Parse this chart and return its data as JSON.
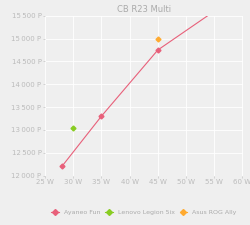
{
  "title": "CB R23 Multi",
  "series_main": {
    "label": "Ayaneo Fun",
    "color": "#e8607a",
    "x": [
      28,
      35,
      45,
      55
    ],
    "y": [
      12200,
      13300,
      14750,
      15600
    ],
    "marker": "D",
    "markersize": 2.5,
    "linestyle": "-"
  },
  "series_legion": {
    "label": "Lenovo Legion 5ix",
    "color": "#88cc22",
    "x": [
      30
    ],
    "y": [
      13050
    ],
    "marker": "D",
    "markersize": 2.5,
    "linestyle": "None"
  },
  "series_asus": {
    "label": "Asus ROG Ally",
    "color": "#ffaa30",
    "x": [
      45
    ],
    "y": [
      15000
    ],
    "marker": "D",
    "markersize": 2.5,
    "linestyle": "None"
  },
  "xlim": [
    25,
    60
  ],
  "ylim": [
    12000,
    15500
  ],
  "xticks": [
    25,
    30,
    35,
    40,
    45,
    50,
    55,
    60
  ],
  "yticks": [
    12000,
    12500,
    13000,
    13500,
    14000,
    14500,
    15000,
    15500
  ],
  "background_color": "#efefef",
  "grid_color": "#ffffff",
  "title_fontsize": 6,
  "tick_fontsize": 5,
  "legend_fontsize": 4.5
}
